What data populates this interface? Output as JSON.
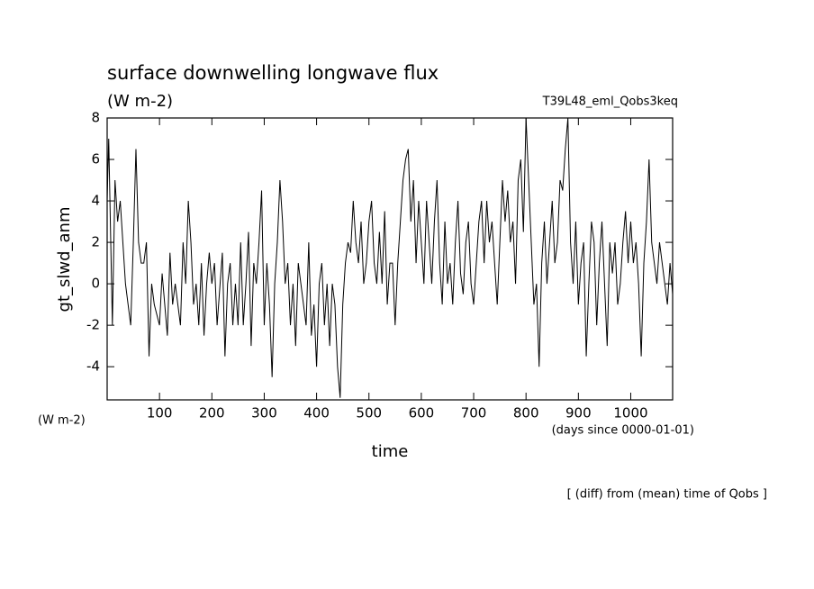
{
  "chart_data": {
    "type": "line",
    "title": "surface downwelling longwave flux",
    "subtitle": "(W m-2)",
    "run_label": "T39L48_eml_Qobs3keq",
    "y_label": "gt_slwd_anm",
    "y_unit_label": "(W m-2)",
    "x_unit_label": "(days since 0000-01-01)",
    "x_label": "time",
    "note": "[ (diff) from (mean) time of Qobs ]",
    "color": "#000000",
    "xlim": [
      0,
      1080
    ],
    "ylim": [
      -5.6,
      8
    ],
    "xticks": [
      100,
      200,
      300,
      400,
      500,
      600,
      700,
      800,
      900,
      1000
    ],
    "yticks": [
      -4,
      -2,
      0,
      2,
      4,
      6,
      8
    ],
    "x": [
      0,
      3,
      10,
      15,
      20,
      25,
      30,
      35,
      40,
      45,
      50,
      55,
      60,
      65,
      70,
      75,
      80,
      85,
      90,
      100,
      105,
      110,
      115,
      120,
      125,
      130,
      140,
      145,
      150,
      155,
      160,
      165,
      170,
      175,
      180,
      185,
      190,
      195,
      200,
      205,
      210,
      220,
      225,
      230,
      235,
      240,
      245,
      250,
      255,
      260,
      265,
      270,
      275,
      280,
      285,
      290,
      295,
      300,
      305,
      310,
      315,
      320,
      325,
      330,
      335,
      340,
      345,
      350,
      355,
      360,
      365,
      370,
      375,
      380,
      385,
      390,
      395,
      400,
      405,
      410,
      415,
      420,
      425,
      430,
      435,
      440,
      445,
      450,
      455,
      460,
      465,
      470,
      475,
      480,
      485,
      490,
      495,
      500,
      505,
      510,
      515,
      520,
      525,
      530,
      535,
      540,
      545,
      550,
      555,
      560,
      565,
      570,
      575,
      580,
      585,
      590,
      595,
      600,
      605,
      610,
      615,
      620,
      625,
      630,
      635,
      640,
      645,
      650,
      655,
      660,
      665,
      670,
      675,
      680,
      685,
      690,
      695,
      700,
      705,
      710,
      715,
      720,
      725,
      730,
      735,
      740,
      745,
      750,
      755,
      760,
      765,
      770,
      775,
      780,
      785,
      790,
      795,
      800,
      805,
      810,
      815,
      820,
      825,
      830,
      835,
      840,
      845,
      850,
      855,
      860,
      865,
      870,
      875,
      880,
      885,
      890,
      895,
      900,
      905,
      910,
      915,
      920,
      925,
      930,
      935,
      940,
      945,
      950,
      955,
      960,
      965,
      970,
      975,
      980,
      985,
      990,
      995,
      1000,
      1005,
      1010,
      1015,
      1020,
      1025,
      1030,
      1035,
      1040,
      1045,
      1050,
      1055,
      1060,
      1065,
      1070,
      1075,
      1080
    ],
    "values": [
      4,
      7,
      -2,
      5,
      3,
      4,
      2,
      0,
      -1,
      -2,
      2,
      6.5,
      2,
      1,
      1,
      2,
      -3.5,
      0,
      -1,
      -2,
      0.5,
      -1,
      -2.5,
      1.5,
      -1,
      0,
      -2,
      2,
      0,
      4,
      2,
      -1,
      0,
      -2,
      1,
      -2.5,
      0,
      1.5,
      0,
      1,
      -2,
      1.5,
      -3.5,
      0,
      1,
      -2,
      0,
      -2,
      2,
      -2,
      0,
      2.5,
      -3,
      1,
      0,
      2,
      4.5,
      -2,
      1,
      -1,
      -4.5,
      0,
      2,
      5,
      3,
      0,
      1,
      -2,
      0,
      -3,
      1,
      0,
      -1,
      -2,
      2,
      -2.5,
      -1,
      -4,
      0,
      1,
      -2,
      0,
      -3,
      0,
      -1,
      -4,
      -5.5,
      -1,
      1,
      2,
      1.5,
      4,
      2,
      1,
      3,
      0,
      1,
      3,
      4,
      1,
      0,
      2.5,
      0,
      3.5,
      -1,
      1,
      1,
      -2,
      1,
      3,
      5,
      6,
      6.5,
      3,
      5,
      1,
      4,
      2,
      0,
      4,
      2,
      0,
      3,
      5,
      1,
      -1,
      3,
      0,
      1,
      -1,
      2,
      4,
      0.5,
      -0.5,
      2,
      3,
      0,
      -1,
      1,
      3,
      4,
      1,
      4,
      2,
      3,
      1,
      -1,
      2,
      5,
      3,
      4.5,
      2,
      3,
      0,
      5,
      6,
      2.5,
      8,
      5,
      2,
      -1,
      0,
      -4,
      1,
      3,
      0,
      2,
      4,
      1,
      2,
      5,
      4.5,
      6.5,
      8,
      2,
      0,
      3,
      -1,
      1,
      2,
      -3.5,
      0,
      3,
      2,
      -2,
      1,
      3,
      0,
      -3,
      2,
      0.5,
      2,
      -1,
      0,
      2,
      3.5,
      1,
      3,
      1,
      2,
      0,
      -3.5,
      1,
      3,
      6,
      2,
      1,
      0,
      2,
      1,
      0,
      -1,
      1,
      -0.5
    ]
  }
}
